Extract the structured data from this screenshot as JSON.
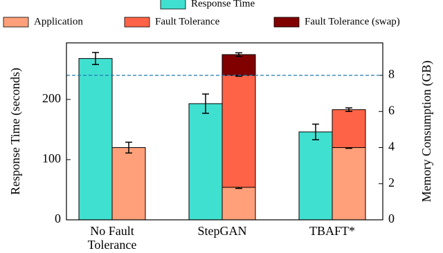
{
  "chart_data": {
    "type": "bar",
    "categories": [
      "No Fault Tolerance",
      "StepGAN",
      "TBAFT*"
    ],
    "series": [
      {
        "name": "Response Time",
        "color": "#40e0d0",
        "values": [
          268,
          193,
          146
        ],
        "errors": [
          10,
          16,
          13
        ]
      },
      {
        "name": "Application",
        "color": "#ffa07a",
        "axis": "y2",
        "values": [
          4.0,
          1.8,
          4.0
        ],
        "errors": [
          0.3,
          0.06,
          0.04
        ]
      },
      {
        "name": "Fault Tolerance",
        "color": "#ff6347",
        "axis": "y2",
        "values": [
          null,
          6.2,
          2.1
        ],
        "errors": [
          null,
          0.05,
          0.1
        ]
      },
      {
        "name": "Fault Tolerance (swap)",
        "color": "#800000",
        "axis": "y2",
        "values": [
          null,
          1.15,
          null
        ],
        "errors": [
          null,
          0.1,
          null
        ]
      }
    ],
    "stacked": true,
    "ylabel": "Response Time (seconds)",
    "y2label": "Memory Consumption (GB)",
    "ylim": [
      0,
      294
    ],
    "yticks": [
      0,
      100,
      200
    ],
    "y2lim": [
      0,
      9.8
    ],
    "y2ticks": [
      0,
      2,
      4,
      6,
      8
    ],
    "reference_line": {
      "value": 8,
      "axis": "y2",
      "color": "#1f77b4"
    }
  }
}
